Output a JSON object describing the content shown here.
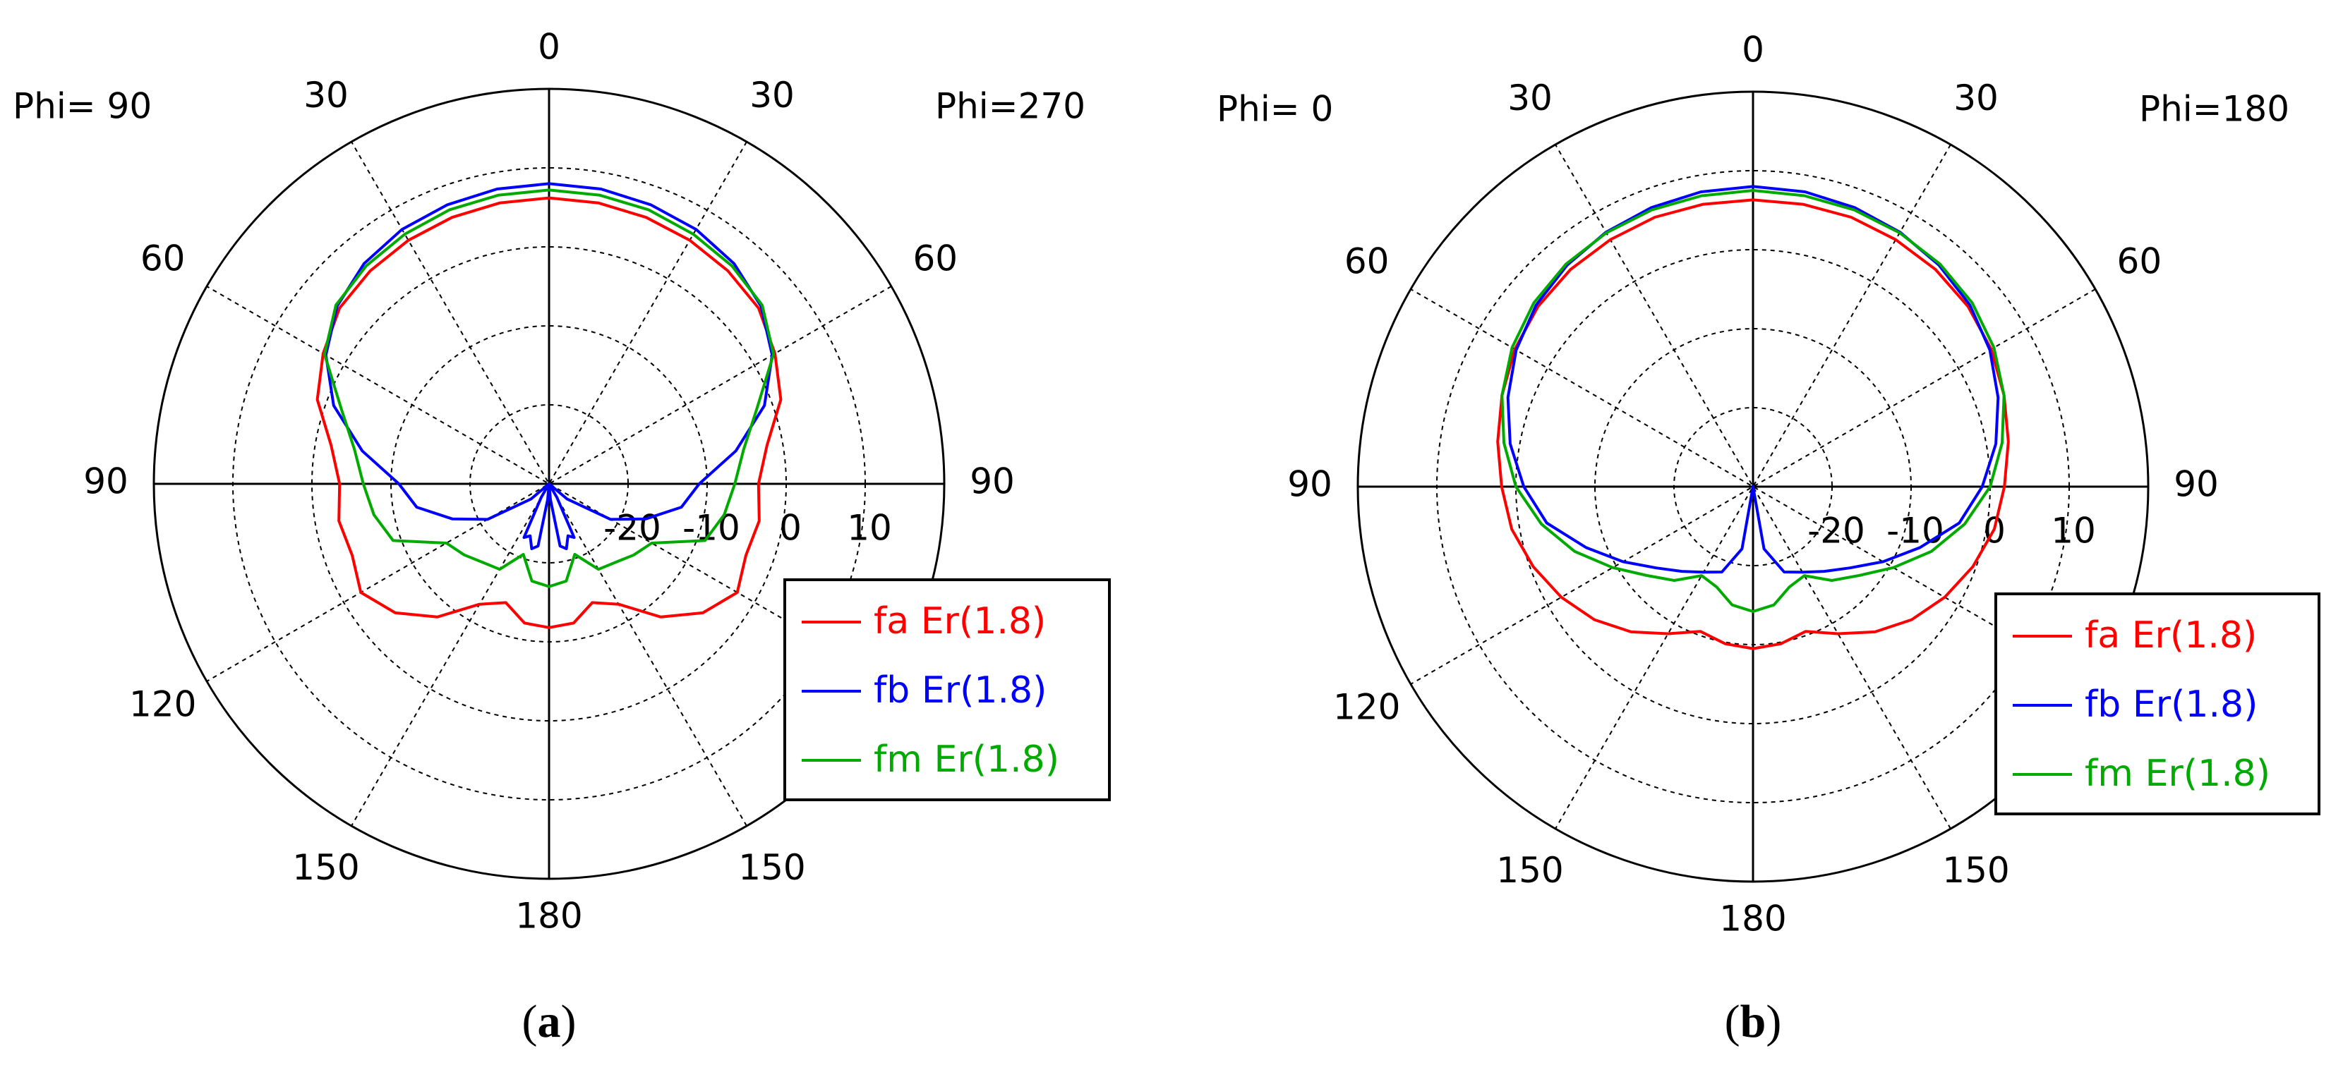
{
  "chart_data": [
    {
      "type": "polar",
      "panel_label": "a",
      "phi_left": "Phi= 90",
      "phi_right": "Phi=270",
      "angle_labels": {
        "top": "0",
        "left": [
          "30",
          "60",
          "90",
          "120",
          "150"
        ],
        "right": [
          "30",
          "60",
          "90",
          "120",
          "150"
        ],
        "bottom": "180"
      },
      "radial_labels": [
        "-20",
        "-10",
        "0",
        "10"
      ],
      "r_range_db": [
        -30,
        20
      ],
      "grid": true,
      "legend_position": "lower-right",
      "series": [
        {
          "name": "fa Er(1.8)",
          "color": "#ff0000",
          "gain_db": [
            [
              -180,
              -11.8
            ],
            [
              -170,
              -12.1
            ],
            [
              -160,
              -14.0
            ],
            [
              -150,
              -12.4
            ],
            [
              -140,
              -8.0
            ],
            [
              -130,
              -4.6
            ],
            [
              -120,
              -2.5
            ],
            [
              -110,
              -3.5
            ],
            [
              -100,
              -3.0
            ],
            [
              -90,
              -3.5
            ],
            [
              -80,
              -2.0
            ],
            [
              -70,
              1.2
            ],
            [
              -60,
              3.0
            ],
            [
              -50,
              4.6
            ],
            [
              -40,
              5.2
            ],
            [
              -30,
              5.6
            ],
            [
              -20,
              5.9
            ],
            [
              -10,
              6.1
            ],
            [
              0,
              6.2
            ],
            [
              10,
              6.1
            ],
            [
              20,
              5.9
            ],
            [
              30,
              5.6
            ],
            [
              40,
              5.2
            ],
            [
              50,
              4.6
            ],
            [
              60,
              3.0
            ],
            [
              70,
              1.2
            ],
            [
              80,
              -2.0
            ],
            [
              90,
              -3.5
            ],
            [
              100,
              -3.0
            ],
            [
              110,
              -3.5
            ],
            [
              120,
              -2.5
            ],
            [
              130,
              -4.6
            ],
            [
              140,
              -8.0
            ],
            [
              150,
              -12.4
            ],
            [
              160,
              -14.0
            ],
            [
              170,
              -12.1
            ],
            [
              180,
              -11.8
            ]
          ]
        },
        {
          "name": "fb Er(1.8)",
          "color": "#0000ff",
          "gain_db": [
            [
              -180,
              -30
            ],
            [
              -175,
              -28
            ],
            [
              -170,
              -22
            ],
            [
              -165,
              -21.5
            ],
            [
              -160,
              -23
            ],
            [
              -155,
              -22.5
            ],
            [
              -150,
              -28
            ],
            [
              -140,
              -30
            ],
            [
              -130,
              -27
            ],
            [
              -120,
              -21
            ],
            [
              -110,
              -17
            ],
            [
              -100,
              -13
            ],
            [
              -90,
              -11.0
            ],
            [
              -80,
              -6.0
            ],
            [
              -70,
              -1.0
            ],
            [
              -60,
              2.6
            ],
            [
              -50,
              5.0
            ],
            [
              -40,
              6.4
            ],
            [
              -30,
              7.2
            ],
            [
              -20,
              7.6
            ],
            [
              -10,
              7.9
            ],
            [
              0,
              8.0
            ],
            [
              10,
              7.9
            ],
            [
              20,
              7.6
            ],
            [
              30,
              7.2
            ],
            [
              40,
              6.4
            ],
            [
              50,
              5.0
            ],
            [
              60,
              2.6
            ],
            [
              70,
              -1.0
            ],
            [
              80,
              -6.0
            ],
            [
              90,
              -11.0
            ],
            [
              100,
              -13
            ],
            [
              110,
              -17
            ],
            [
              120,
              -21
            ],
            [
              130,
              -27
            ],
            [
              140,
              -30
            ],
            [
              150,
              -28
            ],
            [
              155,
              -22.5
            ],
            [
              160,
              -23
            ],
            [
              165,
              -21.5
            ],
            [
              170,
              -22
            ],
            [
              175,
              -28
            ],
            [
              180,
              -30
            ]
          ]
        },
        {
          "name": "fm Er(1.8)",
          "color": "#00aa00",
          "gain_db": [
            [
              -180,
              -17.0
            ],
            [
              -170,
              -17.5
            ],
            [
              -160,
              -20.5
            ],
            [
              -150,
              -17.5
            ],
            [
              -140,
              -17.0
            ],
            [
              -130,
              -16.0
            ],
            [
              -120,
              -15.0
            ],
            [
              -110,
              -9.0
            ],
            [
              -100,
              -7.5
            ],
            [
              -90,
              -6.5
            ],
            [
              -80,
              -5.0
            ],
            [
              -70,
              -2.0
            ],
            [
              -60,
              2.8
            ],
            [
              -50,
              5.2
            ],
            [
              -40,
              6.0
            ],
            [
              -30,
              6.5
            ],
            [
              -20,
              6.9
            ],
            [
              -10,
              7.1
            ],
            [
              0,
              7.2
            ],
            [
              10,
              7.1
            ],
            [
              20,
              6.9
            ],
            [
              30,
              6.5
            ],
            [
              40,
              6.0
            ],
            [
              50,
              5.2
            ],
            [
              60,
              2.8
            ],
            [
              70,
              -2.0
            ],
            [
              80,
              -5.0
            ],
            [
              90,
              -6.5
            ],
            [
              100,
              -7.5
            ],
            [
              110,
              -9.0
            ],
            [
              120,
              -15.0
            ],
            [
              130,
              -16.0
            ],
            [
              140,
              -17.0
            ],
            [
              150,
              -17.5
            ],
            [
              160,
              -20.5
            ],
            [
              170,
              -17.5
            ],
            [
              180,
              -17.0
            ]
          ]
        }
      ]
    },
    {
      "type": "polar",
      "panel_label": "b",
      "phi_left": "Phi=  0",
      "phi_right": "Phi=180",
      "angle_labels": {
        "top": "0",
        "left": [
          "30",
          "60",
          "90",
          "120",
          "150"
        ],
        "right": [
          "30",
          "60",
          "90",
          "120",
          "150"
        ],
        "bottom": "180"
      },
      "radial_labels": [
        "-20",
        "-10",
        "0",
        "10"
      ],
      "r_range_db": [
        -30,
        20
      ],
      "grid": true,
      "legend_position": "lower-right",
      "series": [
        {
          "name": "fa Er(1.8)",
          "color": "#ff0000",
          "gain_db": [
            [
              -180,
              -9.5
            ],
            [
              -170,
              -9.8
            ],
            [
              -160,
              -10.5
            ],
            [
              -150,
              -8.5
            ],
            [
              -140,
              -6.0
            ],
            [
              -130,
              -3.8
            ],
            [
              -120,
              -2.0
            ],
            [
              -110,
              -0.4
            ],
            [
              -100,
              1.0
            ],
            [
              -90,
              1.8
            ],
            [
              -80,
              2.8
            ],
            [
              -70,
              3.8
            ],
            [
              -60,
              4.8
            ],
            [
              -50,
              5.5
            ],
            [
              -40,
              5.9
            ],
            [
              -30,
              6.1
            ],
            [
              -20,
              6.3
            ],
            [
              -10,
              6.3
            ],
            [
              0,
              6.3
            ],
            [
              10,
              6.3
            ],
            [
              20,
              6.3
            ],
            [
              30,
              6.1
            ],
            [
              40,
              5.9
            ],
            [
              50,
              5.5
            ],
            [
              60,
              4.8
            ],
            [
              70,
              3.8
            ],
            [
              80,
              2.8
            ],
            [
              90,
              1.8
            ],
            [
              100,
              1.0
            ],
            [
              110,
              -0.4
            ],
            [
              120,
              -2.0
            ],
            [
              130,
              -3.8
            ],
            [
              140,
              -6.0
            ],
            [
              150,
              -8.5
            ],
            [
              160,
              -10.5
            ],
            [
              170,
              -9.8
            ],
            [
              180,
              -9.5
            ]
          ]
        },
        {
          "name": "fb Er(1.8)",
          "color": "#0000ff",
          "gain_db": [
            [
              -180,
              -30
            ],
            [
              -170,
              -22
            ],
            [
              -160,
              -18.5
            ],
            [
              -150,
              -17.5
            ],
            [
              -140,
              -16.0
            ],
            [
              -130,
              -14.0
            ],
            [
              -120,
              -11.0
            ],
            [
              -110,
              -7.5
            ],
            [
              -100,
              -3.5
            ],
            [
              -90,
              -1.0
            ],
            [
              -80,
              1.2
            ],
            [
              -70,
              3.0
            ],
            [
              -60,
              4.6
            ],
            [
              -50,
              5.8
            ],
            [
              -40,
              6.6
            ],
            [
              -30,
              7.2
            ],
            [
              -20,
              7.6
            ],
            [
              -10,
              7.9
            ],
            [
              0,
              8.0
            ],
            [
              10,
              7.9
            ],
            [
              20,
              7.6
            ],
            [
              30,
              7.2
            ],
            [
              40,
              6.6
            ],
            [
              50,
              5.8
            ],
            [
              60,
              4.6
            ],
            [
              70,
              3.0
            ],
            [
              80,
              1.2
            ],
            [
              90,
              -1.0
            ],
            [
              100,
              -3.5
            ],
            [
              110,
              -7.5
            ],
            [
              120,
              -11.0
            ],
            [
              130,
              -14.0
            ],
            [
              140,
              -16.0
            ],
            [
              150,
              -17.5
            ],
            [
              160,
              -18.5
            ],
            [
              170,
              -22
            ],
            [
              180,
              -30
            ]
          ]
        },
        {
          "name": "fm Er(1.8)",
          "color": "#00aa00",
          "gain_db": [
            [
              -180,
              -14.2
            ],
            [
              -170,
              -14.8
            ],
            [
              -160,
              -16.5
            ],
            [
              -150,
              -17.0
            ],
            [
              -140,
              -14.5
            ],
            [
              -130,
              -12.5
            ],
            [
              -120,
              -9.5
            ],
            [
              -110,
              -6.0
            ],
            [
              -100,
              -2.8
            ],
            [
              -90,
              0.0
            ],
            [
              -80,
              2.0
            ],
            [
              -70,
              3.8
            ],
            [
              -60,
              5.2
            ],
            [
              -50,
              6.2
            ],
            [
              -40,
              6.8
            ],
            [
              -30,
              7.1
            ],
            [
              -20,
              7.3
            ],
            [
              -10,
              7.4
            ],
            [
              0,
              7.5
            ],
            [
              10,
              7.4
            ],
            [
              20,
              7.3
            ],
            [
              30,
              7.1
            ],
            [
              40,
              6.8
            ],
            [
              50,
              6.2
            ],
            [
              60,
              5.2
            ],
            [
              70,
              3.8
            ],
            [
              80,
              2.0
            ],
            [
              90,
              0.0
            ],
            [
              100,
              -2.8
            ],
            [
              110,
              -6.0
            ],
            [
              120,
              -9.5
            ],
            [
              130,
              -12.5
            ],
            [
              140,
              -14.5
            ],
            [
              150,
              -17.0
            ],
            [
              160,
              -16.5
            ],
            [
              170,
              -14.8
            ],
            [
              180,
              -14.2
            ]
          ]
        }
      ]
    }
  ]
}
